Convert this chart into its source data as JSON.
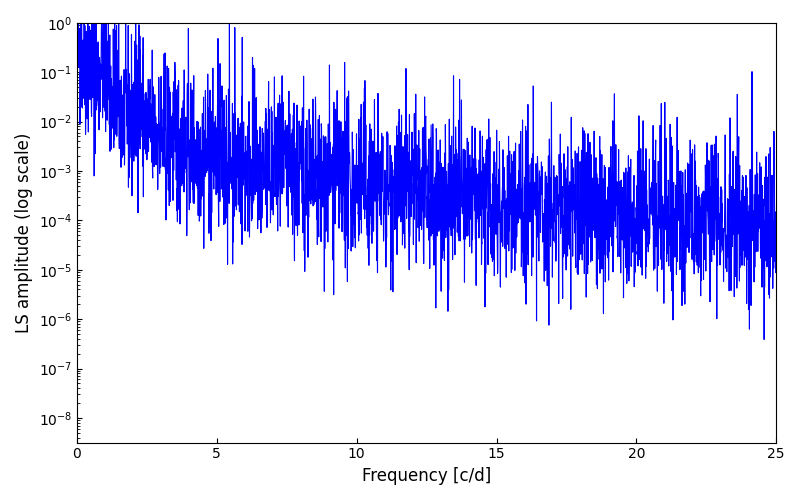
{
  "title": "",
  "xlabel": "Frequency [c/d]",
  "ylabel": "LS amplitude (log scale)",
  "line_color": "#0000ff",
  "line_width": 0.8,
  "xlim": [
    0,
    25
  ],
  "ylim_log_min": -8.5,
  "ylim_log_max": 0,
  "freq_min": 0.0,
  "freq_max": 25.0,
  "n_points": 3000,
  "seed": 42,
  "background_color": "#ffffff",
  "figsize": [
    8.0,
    5.0
  ],
  "dpi": 100
}
